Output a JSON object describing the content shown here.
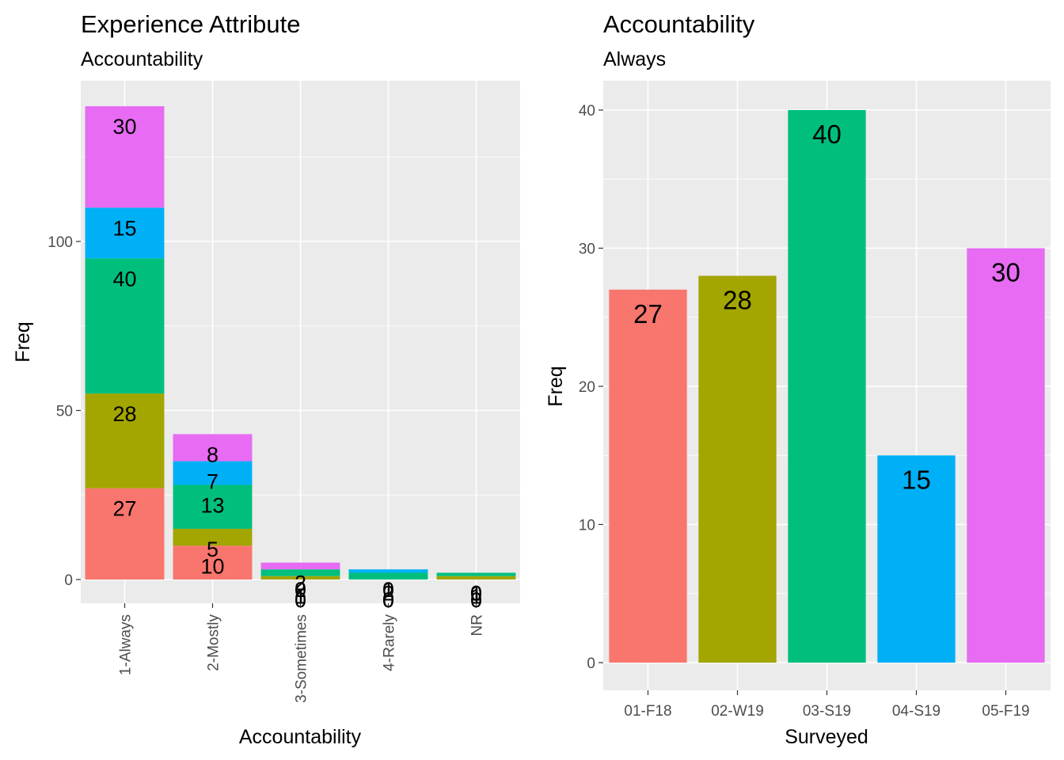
{
  "colors": {
    "panel_bg": "#EBEBEB",
    "grid": "#FFFFFF",
    "series": [
      "#F8766D",
      "#A3A500",
      "#00BF7D",
      "#00B0F6",
      "#E76BF3"
    ]
  },
  "chart_data": [
    {
      "type": "bar",
      "stacked": true,
      "title": "Experience Attribute",
      "subtitle": "Accountability",
      "xlabel": "Accountability",
      "ylabel": "Freq",
      "categories": [
        "1-Always",
        "2-Mostly",
        "3-Sometimes",
        "4-Rarely",
        "NR"
      ],
      "series": [
        {
          "values": [
            27,
            10,
            0,
            0,
            0
          ]
        },
        {
          "values": [
            28,
            5,
            1,
            0,
            1
          ]
        },
        {
          "values": [
            40,
            13,
            2,
            2,
            1
          ]
        },
        {
          "values": [
            15,
            7,
            0,
            1,
            0
          ]
        },
        {
          "values": [
            30,
            8,
            2,
            0,
            0
          ]
        }
      ],
      "ylim": [
        0,
        140
      ],
      "yticks": [
        0,
        50,
        100
      ],
      "grid": true,
      "legend": "none"
    },
    {
      "type": "bar",
      "title": "Accountability",
      "subtitle": "Always",
      "xlabel": "Surveyed",
      "ylabel": "Freq",
      "categories": [
        "01-F18",
        "02-W19",
        "03-S19",
        "04-S19",
        "05-F19"
      ],
      "values": [
        27,
        28,
        40,
        15,
        30
      ],
      "ylim": [
        0,
        42
      ],
      "yticks": [
        0,
        10,
        20,
        30,
        40
      ],
      "grid": true,
      "legend": "none"
    }
  ]
}
